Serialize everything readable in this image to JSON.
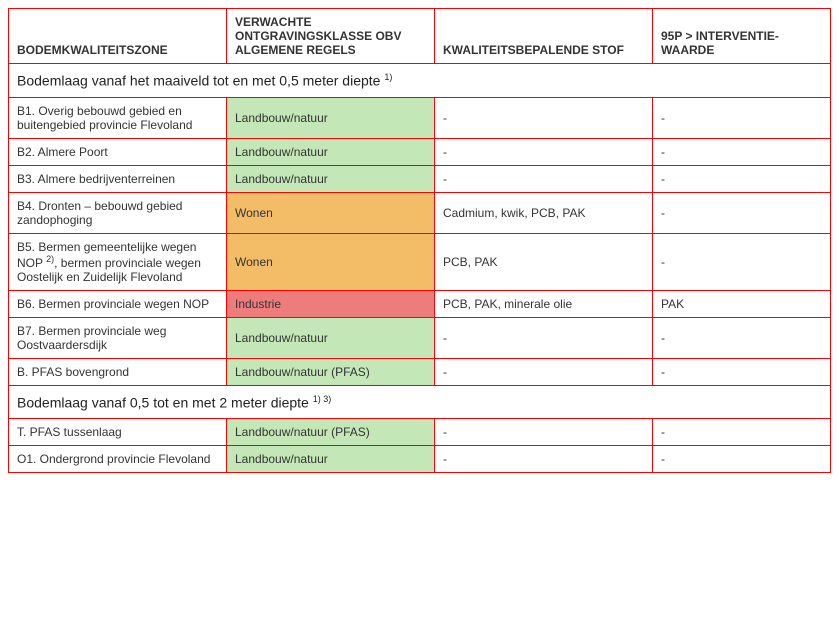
{
  "headers": {
    "zone": "BODEMKWALITEITSZONE",
    "class": "VERWACHTE ONTGRAVINGSKLASSE OBV ALGEMENE REGELS",
    "stof": "KWALITEITSBEPALENDE STOF",
    "p95": "95P > INTERVENTIE-WAARDE"
  },
  "sections": [
    {
      "title": "Bodemlaag vanaf het maaiveld tot en met 0,5 meter diepte ",
      "sup": "1)",
      "rows": [
        {
          "zone": "B1. Overig bebouwd gebied en buitengebied provincie Flevoland",
          "class": "Landbouw/natuur",
          "class_color": "c-green",
          "stof": "-",
          "p95": "-"
        },
        {
          "zone": "B2. Almere Poort",
          "class": "Landbouw/natuur",
          "class_color": "c-green",
          "stof": "-",
          "p95": "-"
        },
        {
          "zone": "B3. Almere bedrijventerreinen",
          "class": "Landbouw/natuur",
          "class_color": "c-green",
          "stof": "-",
          "p95": "-"
        },
        {
          "zone": "B4. Dronten – bebouwd gebied zandophoging",
          "class": "Wonen",
          "class_color": "c-orange",
          "stof": "Cadmium, kwik, PCB, PAK",
          "p95": "-"
        },
        {
          "zone_html": "B5. Bermen gemeentelijke wegen NOP <sup>2)</sup>, bermen provinciale wegen Oostelijk en Zuidelijk Flevoland",
          "class": "Wonen",
          "class_color": "c-orange",
          "stof": "PCB, PAK",
          "p95": "-"
        },
        {
          "zone": "B6. Bermen provinciale wegen NOP",
          "class": "Industrie",
          "class_color": "c-red",
          "stof": "PCB, PAK, minerale olie",
          "p95": "PAK"
        },
        {
          "zone": "B7. Bermen provinciale weg Oostvaardersdijk",
          "class": "Landbouw/natuur",
          "class_color": "c-green",
          "stof": "-",
          "p95": "-"
        },
        {
          "zone": "B. PFAS bovengrond",
          "class": "Landbouw/natuur (PFAS)",
          "class_color": "c-green",
          "stof": "-",
          "p95": "-"
        }
      ]
    },
    {
      "title": "Bodemlaag vanaf 0,5 tot en met 2 meter diepte ",
      "sup": "1) 3)",
      "rows": [
        {
          "zone": "T. PFAS tussenlaag",
          "class": "Landbouw/natuur (PFAS)",
          "class_color": "c-green",
          "stof": "-",
          "p95": "-"
        },
        {
          "zone": "O1. Ondergrond provincie Flevoland",
          "class": "Landbouw/natuur",
          "class_color": "c-green",
          "stof": "-",
          "p95": "-"
        }
      ]
    }
  ],
  "colors": {
    "border": "#ff0000",
    "green": "#c4e7b7",
    "orange": "#f2bd66",
    "red": "#ed7d7d"
  }
}
